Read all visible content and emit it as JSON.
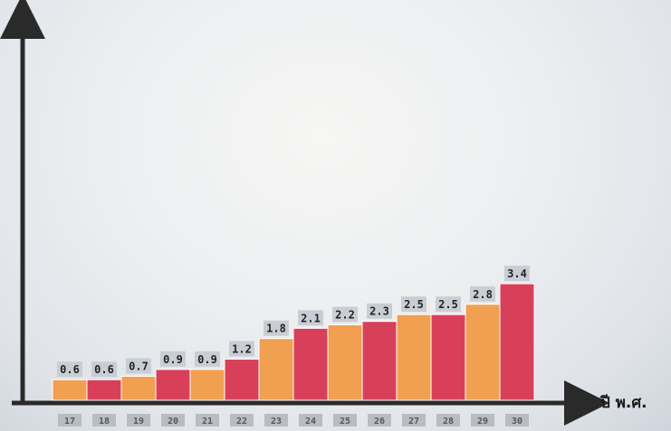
{
  "chart_data": {
    "type": "bar",
    "title": "",
    "xlabel": "ปี พ.ศ.",
    "ylabel": "",
    "categories": [
      "17",
      "18",
      "19",
      "20",
      "21",
      "22",
      "23",
      "24",
      "25",
      "26",
      "27",
      "28",
      "29",
      "30"
    ],
    "values": [
      0.6,
      0.6,
      0.7,
      0.9,
      0.9,
      1.2,
      1.8,
      2.1,
      2.2,
      2.3,
      2.5,
      2.5,
      2.8,
      3.4
    ],
    "value_labels": [
      "0.6",
      "0.6",
      "0.7",
      "0.9",
      "0.9",
      "1.2",
      "1.8",
      "2.1",
      "2.2",
      "2.3",
      "2.5",
      "2.5",
      "2.8",
      "3.4"
    ],
    "ylim": [
      0,
      3.4
    ],
    "grid": false,
    "legend": "none",
    "colors": {
      "orange": "#f0a050",
      "red": "#d8405a",
      "axis": "#2a2a2a",
      "label_bg": "#c9ced4",
      "tick_bg": "#b8bdc3"
    }
  }
}
